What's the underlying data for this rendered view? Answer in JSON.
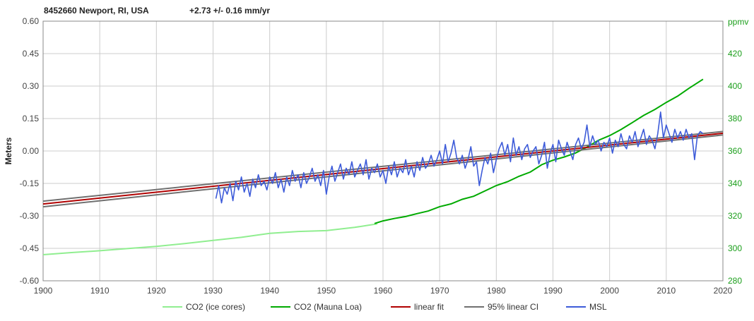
{
  "header": {
    "station": "8452660 Newport, RI, USA",
    "trend": "+2.73 +/- 0.16 mm/yr"
  },
  "chart_data": {
    "type": "line",
    "title": "8452660 Newport, RI, USA",
    "subtitle": "+2.73 +/- 0.16 mm/yr",
    "xlabel": "",
    "ylabel": "Meters",
    "y2label": "ppmv",
    "xlim": [
      1900,
      2020
    ],
    "ylim": [
      -0.6,
      0.6
    ],
    "y2lim": [
      280,
      440
    ],
    "x_ticks": [
      1900,
      1910,
      1920,
      1930,
      1940,
      1950,
      1960,
      1970,
      1980,
      1990,
      2000,
      2010,
      2020
    ],
    "y_ticks": [
      "0.60",
      "0.45",
      "0.30",
      "0.15",
      "0.00",
      "-0.15",
      "-0.30",
      "-0.45",
      "-0.60"
    ],
    "y2_ticks": [
      "420",
      "400",
      "380",
      "360",
      "340",
      "320",
      "300",
      "280"
    ],
    "grid": true,
    "legend_position": "bottom",
    "legend": [
      "CO2 (ice cores)",
      "CO2 (Mauna Loa)",
      "linear fit",
      "95% linear CI",
      "MSL"
    ],
    "series": [
      {
        "name": "CO2 (ice cores)",
        "axis": "right",
        "color": "#90ee90",
        "x": [
          1900,
          1905,
          1910,
          1915,
          1920,
          1925,
          1930,
          1935,
          1940,
          1945,
          1950,
          1955,
          1959
        ],
        "y": [
          296.1,
          297.4,
          298.5,
          299.9,
          301.2,
          302.9,
          304.9,
          306.8,
          309.2,
          310.4,
          310.9,
          312.9,
          315.1
        ]
      },
      {
        "name": "CO2 (Mauna Loa)",
        "axis": "right",
        "color": "#00aa00",
        "x": [
          1958.5,
          1960,
          1962,
          1964,
          1966,
          1968,
          1970,
          1972,
          1974,
          1976,
          1978,
          1980,
          1982,
          1984,
          1986,
          1988,
          1990,
          1992,
          1994,
          1996,
          1998,
          2000,
          2002,
          2004,
          2006,
          2008,
          2010,
          2012,
          2014,
          2016.5
        ],
        "y": [
          315.3,
          316.9,
          318.4,
          319.6,
          321.4,
          323.0,
          325.7,
          327.4,
          330.2,
          332.1,
          335.4,
          338.7,
          341.1,
          344.4,
          347.0,
          351.5,
          354.3,
          356.3,
          358.8,
          362.4,
          366.5,
          369.5,
          373.2,
          377.5,
          381.9,
          385.6,
          389.9,
          393.8,
          398.6,
          404.2
        ]
      },
      {
        "name": "linear fit",
        "axis": "left",
        "color": "#b00000",
        "x": [
          1900,
          2020
        ],
        "y": [
          -0.245,
          0.082
        ]
      },
      {
        "name": "95% linear CI",
        "axis": "left",
        "color": "#707070",
        "x": [
          1900,
          2020
        ],
        "y_upper": [
          -0.232,
          0.09
        ],
        "y_lower": [
          -0.258,
          0.074
        ]
      },
      {
        "name": "MSL",
        "axis": "left",
        "color": "#3d5bd9",
        "x": [
          1930.5,
          1931,
          1931.5,
          1932,
          1932.5,
          1933,
          1933.5,
          1934,
          1934.5,
          1935,
          1935.5,
          1936,
          1936.5,
          1937,
          1937.5,
          1938,
          1938.5,
          1939,
          1939.5,
          1940,
          1940.5,
          1941,
          1941.5,
          1942,
          1942.5,
          1943,
          1943.5,
          1944,
          1944.5,
          1945,
          1945.5,
          1946,
          1946.5,
          1947,
          1947.5,
          1948,
          1948.5,
          1949,
          1949.5,
          1950,
          1950.5,
          1951,
          1951.5,
          1952,
          1952.5,
          1953,
          1953.5,
          1954,
          1954.5,
          1955,
          1955.5,
          1956,
          1956.5,
          1957,
          1957.5,
          1958,
          1958.5,
          1959,
          1959.5,
          1960,
          1960.5,
          1961,
          1961.5,
          1962,
          1962.5,
          1963,
          1963.5,
          1964,
          1964.5,
          1965,
          1965.5,
          1966,
          1966.5,
          1967,
          1967.5,
          1968,
          1968.5,
          1969,
          1969.5,
          1970,
          1970.5,
          1971,
          1971.5,
          1972,
          1972.5,
          1973,
          1973.5,
          1974,
          1974.5,
          1975,
          1975.5,
          1976,
          1976.5,
          1977,
          1977.5,
          1978,
          1978.5,
          1979,
          1979.5,
          1980,
          1980.5,
          1981,
          1981.5,
          1982,
          1982.5,
          1983,
          1983.5,
          1984,
          1984.5,
          1985,
          1985.5,
          1986,
          1986.5,
          1987,
          1987.5,
          1988,
          1988.5,
          1989,
          1989.5,
          1990,
          1990.5,
          1991,
          1991.5,
          1992,
          1992.5,
          1993,
          1993.5,
          1994,
          1994.5,
          1995,
          1995.5,
          1996,
          1996.5,
          1997,
          1997.5,
          1998,
          1998.5,
          1999,
          1999.5,
          2000,
          2000.5,
          2001,
          2001.5,
          2002,
          2002.5,
          2003,
          2003.5,
          2004,
          2004.5,
          2005,
          2005.5,
          2006,
          2006.5,
          2007,
          2007.5,
          2008,
          2008.5,
          2009,
          2009.5,
          2010,
          2010.5,
          2011,
          2011.5,
          2012,
          2012.5,
          2013,
          2013.5,
          2014,
          2014.5,
          2015,
          2015.5,
          2016,
          2016.5
        ],
        "y": [
          -0.22,
          -0.16,
          -0.24,
          -0.17,
          -0.2,
          -0.15,
          -0.23,
          -0.14,
          -0.18,
          -0.12,
          -0.19,
          -0.15,
          -0.21,
          -0.13,
          -0.17,
          -0.11,
          -0.16,
          -0.14,
          -0.18,
          -0.12,
          -0.15,
          -0.1,
          -0.17,
          -0.13,
          -0.19,
          -0.12,
          -0.16,
          -0.09,
          -0.14,
          -0.11,
          -0.17,
          -0.1,
          -0.15,
          -0.12,
          -0.08,
          -0.14,
          -0.11,
          -0.16,
          -0.09,
          -0.2,
          -0.12,
          -0.07,
          -0.14,
          -0.1,
          -0.06,
          -0.13,
          -0.08,
          -0.11,
          -0.05,
          -0.12,
          -0.09,
          -0.06,
          -0.11,
          -0.04,
          -0.13,
          -0.08,
          -0.1,
          -0.06,
          -0.12,
          -0.09,
          -0.15,
          -0.07,
          -0.11,
          -0.05,
          -0.12,
          -0.08,
          -0.1,
          -0.04,
          -0.11,
          -0.07,
          -0.12,
          -0.05,
          -0.09,
          -0.03,
          -0.08,
          -0.06,
          -0.02,
          -0.07,
          -0.04,
          0.0,
          -0.06,
          0.03,
          -0.05,
          -0.01,
          0.05,
          -0.03,
          -0.06,
          -0.02,
          -0.08,
          -0.04,
          0.02,
          -0.07,
          -0.05,
          -0.16,
          -0.09,
          -0.03,
          -0.06,
          -0.01,
          -0.1,
          -0.04,
          0.01,
          0.04,
          -0.02,
          0.03,
          -0.05,
          0.06,
          -0.02,
          0.02,
          -0.04,
          0.01,
          0.03,
          -0.03,
          0.0,
          0.02,
          -0.06,
          -0.02,
          0.04,
          -0.08,
          -0.01,
          0.03,
          -0.05,
          0.05,
          0.01,
          -0.02,
          0.04,
          0.0,
          -0.04,
          0.03,
          0.06,
          0.01,
          0.04,
          0.12,
          0.02,
          0.07,
          0.03,
          0.05,
          0.0,
          0.04,
          0.02,
          0.06,
          -0.01,
          0.05,
          0.02,
          0.08,
          0.03,
          0.01,
          0.07,
          0.04,
          0.09,
          0.02,
          0.06,
          0.1,
          0.03,
          0.07,
          0.05,
          0.01,
          0.08,
          0.18,
          0.06,
          0.12,
          0.08,
          0.04,
          0.1,
          0.06,
          0.09,
          0.05,
          0.1,
          0.06,
          0.08,
          -0.04,
          0.07,
          0.09,
          0.08
        ]
      }
    ]
  }
}
